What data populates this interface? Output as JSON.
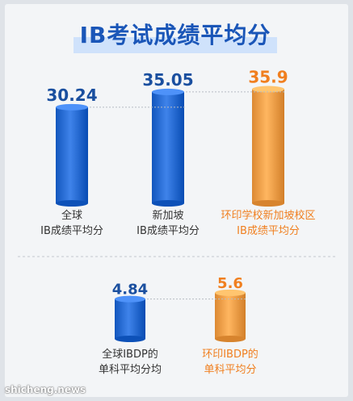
{
  "title": "IB考试成绩平均分",
  "chart_data": [
    {
      "type": "bar",
      "categories": [
        "全球 IB成绩平均分",
        "新加坡 IB成绩平均分",
        "环印学校新加坡校区 IB成绩平均分"
      ],
      "values": [
        30.24,
        35.05,
        35.9
      ],
      "value_labels": [
        "30.24",
        "35.05",
        "35.9"
      ],
      "category_lines": [
        [
          "全球",
          "IB成绩平均分"
        ],
        [
          "新加坡",
          "IB成绩平均分"
        ],
        [
          "环印学校新加坡校区",
          "IB成绩平均分"
        ]
      ],
      "bar_colors": [
        "#2b6fd6",
        "#2b6fd6",
        "#f5a24c"
      ],
      "label_colors": [
        "#333333",
        "#333333",
        "#f07f1f"
      ],
      "value_colors": [
        "#1a4f9f",
        "#1a4f9f",
        "#f07f1f"
      ],
      "ylim": [
        0,
        45
      ]
    },
    {
      "type": "bar",
      "categories": [
        "全球IBDP的 单科平均分均",
        "环印IBDP的 单科平均分"
      ],
      "values": [
        4.84,
        5.6
      ],
      "value_labels": [
        "4.84",
        "5.6"
      ],
      "category_lines": [
        [
          "全球IBDP的",
          "单科平均分均"
        ],
        [
          "环印IBDP的",
          "单科平均分"
        ]
      ],
      "bar_colors": [
        "#2b6fd6",
        "#f5a24c"
      ],
      "label_colors": [
        "#333333",
        "#f07f1f"
      ],
      "value_colors": [
        "#1a4f9f",
        "#f07f1f"
      ],
      "ylim": [
        0,
        7
      ]
    }
  ],
  "watermark": "shicheng.news"
}
